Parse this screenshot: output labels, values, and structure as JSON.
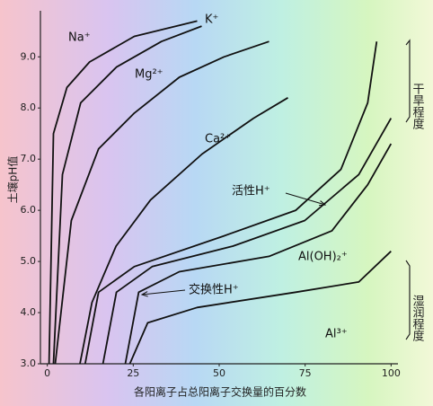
{
  "chart_data": {
    "type": "line",
    "y_label": "土壤pH值",
    "x_label": "各阳离子占总阳离子交换量的百分数",
    "annotations": [
      "干旱程度",
      "湿润程度"
    ],
    "xlim": [
      -2,
      102
    ],
    "ylim": [
      3,
      9.9
    ],
    "xticks": [
      0,
      25,
      50,
      75,
      100
    ],
    "yticks": [
      {
        "value": 3,
        "label": "3.0"
      },
      {
        "value": 4,
        "label": "4.0"
      },
      {
        "value": 5,
        "label": "5.0"
      },
      {
        "value": 6,
        "label": "6.0"
      },
      {
        "value": 7,
        "label": "7.0"
      },
      {
        "value": 8,
        "label": "8.0"
      },
      {
        "value": 9,
        "label": "9.0"
      }
    ],
    "series": [
      {
        "name": "Na⁺",
        "color": "#111111",
        "x": [
          0.5,
          1.8,
          5.7,
          12.3,
          25.3,
          43.6
        ],
        "values": [
          3,
          7.5,
          8.4,
          8.9,
          9.4,
          9.7
        ]
      },
      {
        "name": "K⁺",
        "color": "#111111",
        "x": [
          1.8,
          4.4,
          9.7,
          20.1,
          33.2,
          44.9
        ],
        "values": [
          3,
          6.7,
          8.1,
          8.8,
          9.3,
          9.6
        ]
      },
      {
        "name": "Mg²⁺",
        "color": "#111111",
        "x": [
          2.3,
          7,
          14.9,
          25.3,
          38.4,
          51.4,
          64.5
        ],
        "values": [
          3,
          5.8,
          7.2,
          7.9,
          8.6,
          9,
          9.3
        ]
      },
      {
        "name": "Ca²⁺",
        "color": "#111111",
        "x": [
          9.5,
          13,
          20,
          30,
          45,
          60,
          70
        ],
        "values": [
          3,
          4.2,
          5.3,
          6.2,
          7.1,
          7.8,
          8.2
        ]
      },
      {
        "name": "活性H⁺",
        "color": "#111111",
        "x": [
          11,
          14.9,
          25.3,
          51.4,
          72.3,
          85.4,
          93.2,
          95.8
        ],
        "values": [
          3,
          4.4,
          4.9,
          5.5,
          6,
          6.8,
          8.1,
          9.3
        ]
      },
      {
        "name": "交换性H⁺",
        "color": "#111111",
        "x": [
          16.2,
          20.1,
          30.5,
          54,
          74.9,
          90.6,
          100
        ],
        "values": [
          3,
          4.4,
          4.9,
          5.3,
          5.8,
          6.7,
          7.8
        ]
      },
      {
        "name": "Al(OH)₂⁺",
        "color": "#111111",
        "x": [
          22.7,
          26.6,
          38.4,
          64.5,
          82.8,
          93.2,
          100
        ],
        "values": [
          3,
          4.4,
          4.8,
          5.1,
          5.6,
          6.5,
          7.3
        ]
      },
      {
        "name": "Al³⁺",
        "color": "#111111",
        "x": [
          24,
          29.2,
          43.6,
          72.3,
          90.6,
          100
        ],
        "values": [
          3,
          3.8,
          4.1,
          4.4,
          4.6,
          5.2
        ]
      }
    ]
  }
}
